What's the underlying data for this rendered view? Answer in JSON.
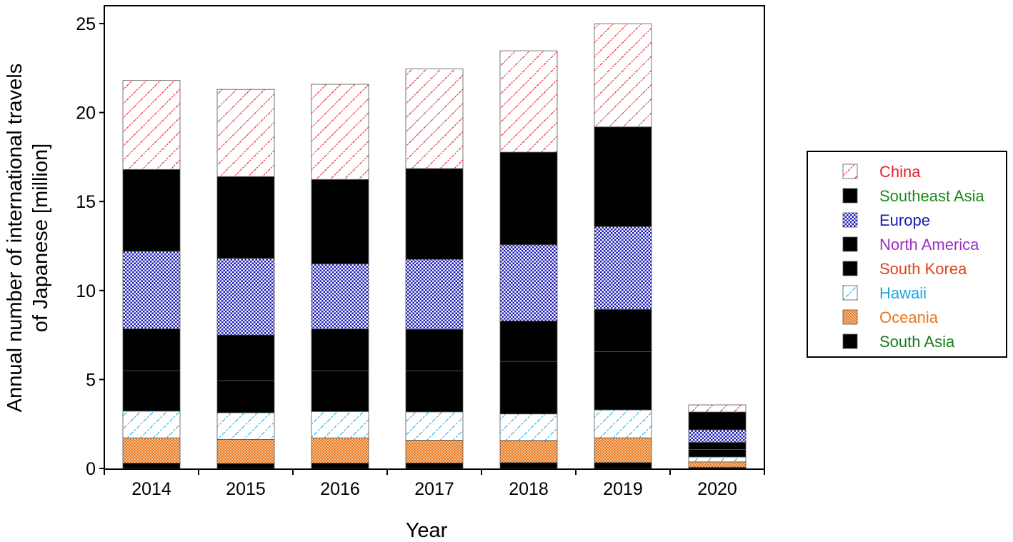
{
  "chart_data": {
    "type": "bar",
    "stacked": true,
    "title": "",
    "xlabel": "Year",
    "ylabel_lines": [
      "Annual number of international travels",
      "of Japanese [million]"
    ],
    "ylim": [
      0,
      25
    ],
    "yticks": [
      0,
      5,
      10,
      15,
      20,
      25
    ],
    "categories": [
      "2014",
      "2015",
      "2016",
      "2017",
      "2018",
      "2019",
      "2020"
    ],
    "legend_position": "right",
    "series": [
      {
        "name": "South Asia",
        "color": "#1a7a1a",
        "pattern": "checker",
        "values": [
          0.3,
          0.28,
          0.3,
          0.31,
          0.33,
          0.33,
          0.07
        ]
      },
      {
        "name": "Oceania",
        "color": "#e8761e",
        "pattern": "dots",
        "values": [
          1.42,
          1.35,
          1.42,
          1.28,
          1.24,
          1.39,
          0.3
        ]
      },
      {
        "name": "Hawaii",
        "color": "#1aa6e0",
        "pattern": "diag-right",
        "values": [
          1.5,
          1.5,
          1.48,
          1.59,
          1.49,
          1.57,
          0.27
        ]
      },
      {
        "name": "South Korea",
        "color": "#e0401a",
        "pattern": "diag-cross",
        "values": [
          2.28,
          1.81,
          2.29,
          2.31,
          2.95,
          3.27,
          0.43
        ]
      },
      {
        "name": "North America",
        "color": "#d63fbf",
        "pattern": "fill-dots",
        "values": [
          2.35,
          2.56,
          2.35,
          2.33,
          2.28,
          2.38,
          0.4
        ]
      },
      {
        "name": "Europe",
        "color": "#1a1ab5",
        "pattern": "dense-dots",
        "values": [
          4.35,
          4.3,
          3.65,
          3.93,
          4.28,
          4.65,
          0.7
        ]
      },
      {
        "name": "Southeast Asia",
        "color": "#1a8a1a",
        "pattern": "grid",
        "values": [
          4.6,
          4.6,
          4.75,
          5.1,
          5.2,
          5.6,
          1.0
        ]
      },
      {
        "name": "China",
        "color": "#e8202a",
        "pattern": "diag-right-red",
        "values": [
          5.0,
          4.9,
          5.35,
          5.6,
          5.7,
          5.8,
          0.4
        ]
      }
    ],
    "legend_order": [
      "China",
      "Southeast Asia",
      "Europe",
      "North America",
      "South Korea",
      "Hawaii",
      "Oceania",
      "South Asia"
    ],
    "legend_label_colors": {
      "China": "#e8202a",
      "Southeast Asia": "#1a8a1a",
      "Europe": "#1a1ab5",
      "North America": "#9a30c8",
      "South Korea": "#e0401a",
      "Hawaii": "#1aa6e0",
      "Oceania": "#e8761e",
      "South Asia": "#1a7a1a"
    }
  }
}
